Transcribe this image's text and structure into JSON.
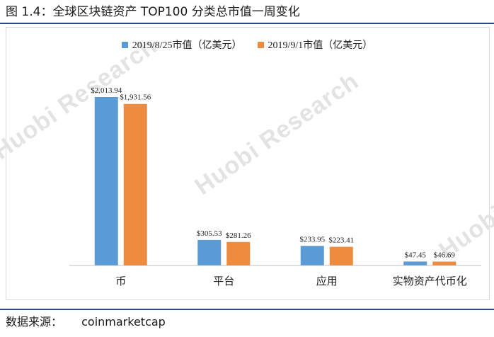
{
  "figure": {
    "title": "图 1.4：全球区块链资产 TOP100 分类总市值一周变化",
    "source_label": "数据来源：",
    "source_value": "coinmarketcap"
  },
  "watermark": {
    "text": "Huobi Research"
  },
  "colors": {
    "series_a": "#5b9bd5",
    "series_b": "#ed8b3f",
    "axis": "#bfbfbf",
    "rule": "#2b4a84"
  },
  "chart_data": {
    "type": "bar",
    "categories": [
      "币",
      "平台",
      "应用",
      "实物资产代币化"
    ],
    "series": [
      {
        "name": "2019/8/25市值（亿美元）",
        "values": [
          2013.94,
          305.53,
          233.95,
          47.45
        ],
        "labels": [
          "$2,013.94",
          "$305.53",
          "$233.95",
          "$47.45"
        ]
      },
      {
        "name": "2019/9/1市值（亿美元）",
        "values": [
          1931.56,
          281.26,
          223.41,
          46.69
        ],
        "labels": [
          "$1,931.56",
          "$281.26",
          "$223.41",
          "$46.69"
        ]
      }
    ],
    "ylim": [
      0,
      2200
    ],
    "grid": false,
    "legend_position": "top"
  }
}
